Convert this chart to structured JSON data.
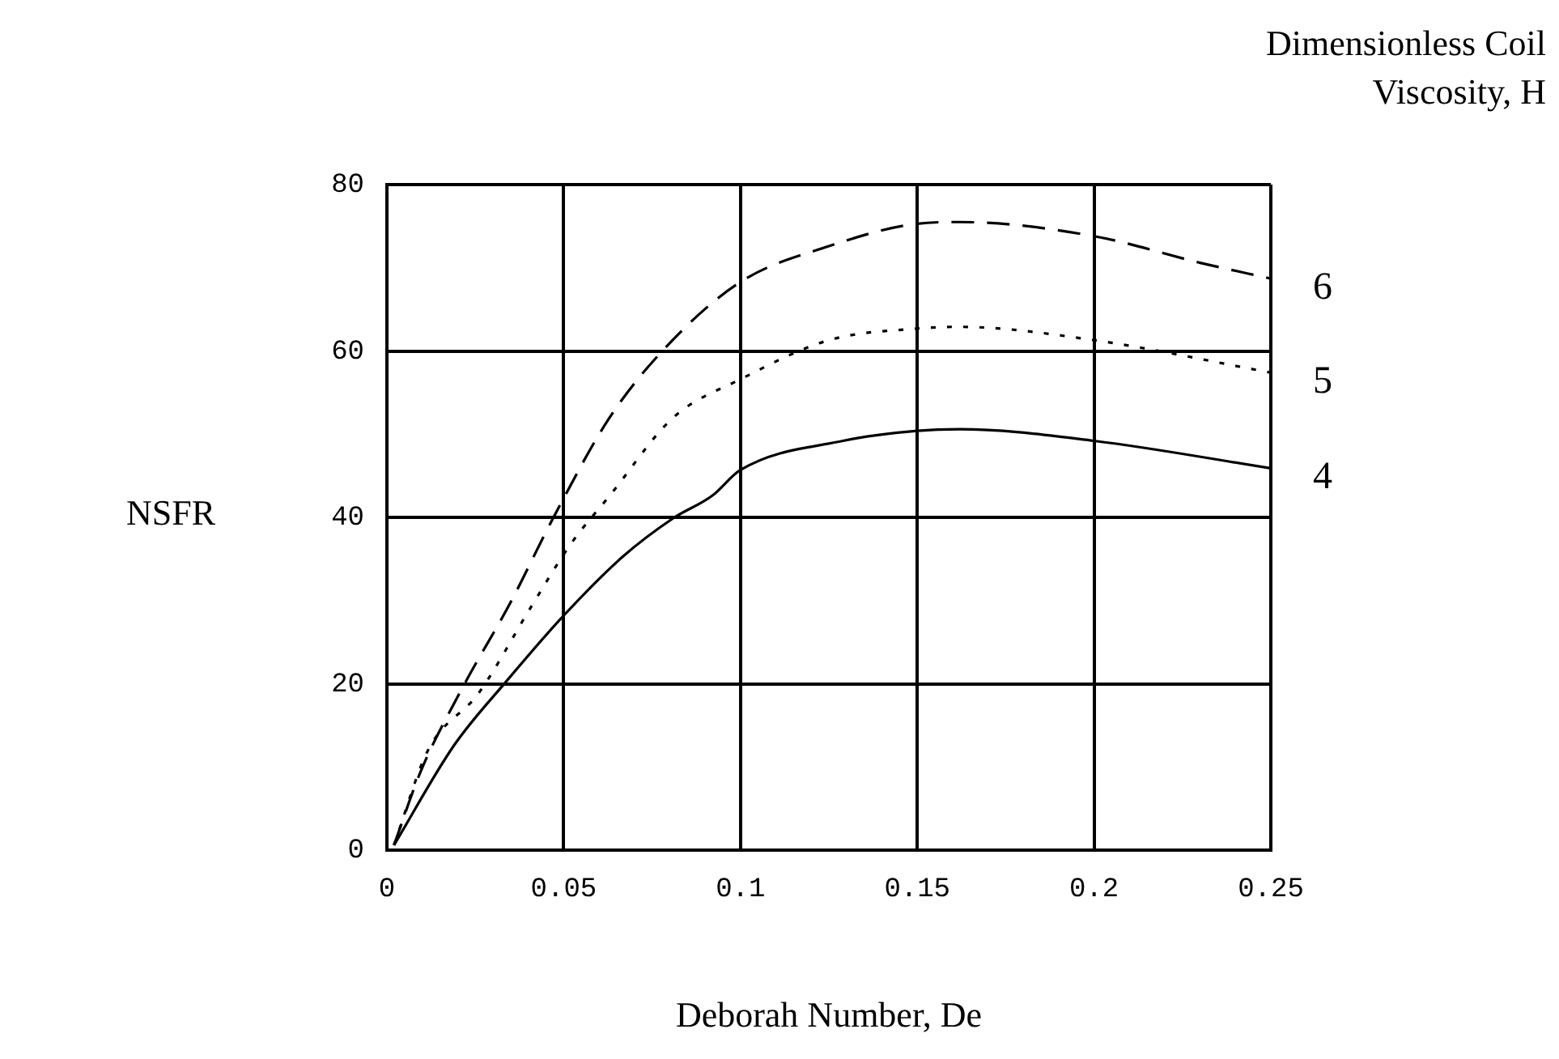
{
  "chart_data": {
    "type": "line",
    "xlabel": "Deborah Number, De",
    "ylabel": "NSFR",
    "legend_title": "Dimensionless Coil Viscosity, H",
    "xlim": [
      0,
      0.25
    ],
    "xticks": [
      0,
      0.05,
      0.1,
      0.15,
      0.2,
      0.25
    ],
    "ylim": [
      0,
      80
    ],
    "yticks": [
      0,
      20,
      40,
      60,
      80
    ],
    "grid": true,
    "marker": "none",
    "series": [
      {
        "name": "6",
        "color": "#000000",
        "line_style": "dashed",
        "x": [
          0.002,
          0.0096,
          0.0216,
          0.035,
          0.047,
          0.063,
          0.079,
          0.1,
          0.125,
          0.15,
          0.162,
          0.2,
          0.23,
          0.25
        ],
        "values": [
          0.6,
          9.5,
          19.7,
          29.8,
          39.9,
          52,
          60.5,
          68.3,
          72.6,
          75.3,
          75.5,
          73.8,
          70.6,
          68.7
        ]
      },
      {
        "name": "5",
        "color": "#000000",
        "line_style": "dotted",
        "x": [
          0.002,
          0.0115,
          0.026,
          0.041,
          0.052,
          0.063,
          0.081,
          0.1,
          0.125,
          0.15,
          0.162,
          0.2,
          0.25
        ],
        "values": [
          0.6,
          11.9,
          18.9,
          29.4,
          36.8,
          42.6,
          52,
          56.6,
          61.3,
          62.7,
          62.9,
          61.3,
          57.4
        ]
      },
      {
        "name": "4",
        "color": "#000000",
        "line_style": "solid",
        "x": [
          0.002,
          0.019,
          0.034,
          0.05,
          0.0665,
          0.081,
          0.092,
          0.1,
          0.129,
          0.15,
          0.162,
          0.2,
          0.25
        ],
        "values": [
          0.6,
          12.6,
          20.4,
          28.2,
          35.2,
          39.9,
          42.6,
          45.7,
          49.2,
          50.4,
          50.6,
          49.2,
          45.9
        ]
      }
    ]
  }
}
